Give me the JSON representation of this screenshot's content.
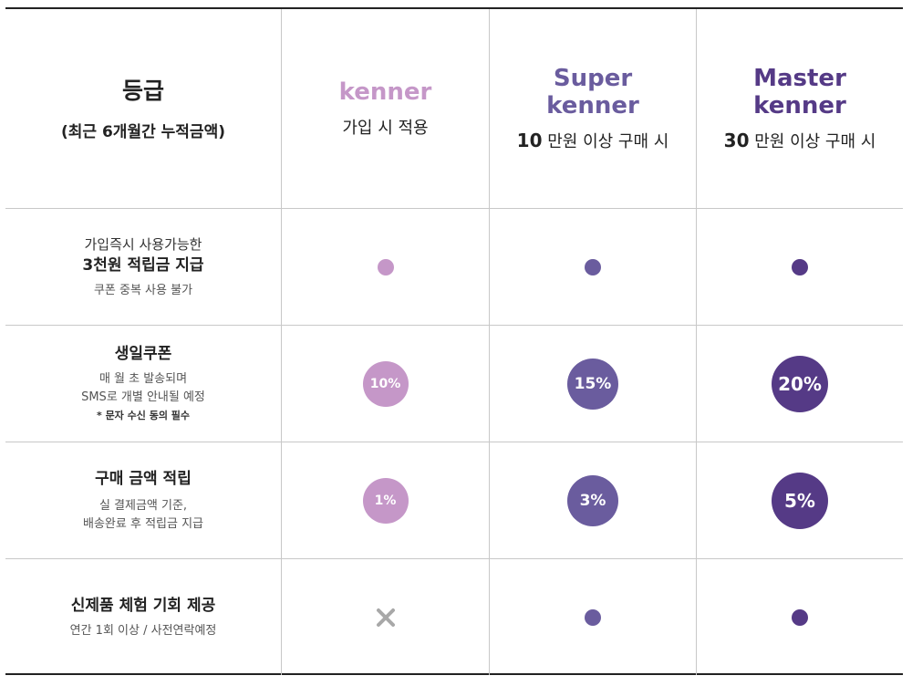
{
  "colors": {
    "kenner": "#c597c8",
    "super": "#6a5c9e",
    "master": "#553a86",
    "cross": "#a8a8a8"
  },
  "header": {
    "grade_label": "등급",
    "grade_sub": "(최근 6개월간 누적금액)",
    "tiers": [
      {
        "name_line1": "kenner",
        "name_line2": "",
        "condition_amount": "",
        "condition_text": "가입 시 적용"
      },
      {
        "name_line1": "Super",
        "name_line2": "kenner",
        "condition_amount": "10",
        "condition_text": "만원 이상 구매 시"
      },
      {
        "name_line1": "Master",
        "name_line2": "kenner",
        "condition_amount": "30",
        "condition_text": "만원 이상 구매 시"
      }
    ]
  },
  "benefits": [
    {
      "line1": "가입즉시 사용가능한",
      "title": "3천원 적립금 지급",
      "note": "쿠폰 중복 사용 불가",
      "values": [
        "",
        "",
        ""
      ]
    },
    {
      "title": "생일쿠폰",
      "desc1": "매 월 초 발송되며",
      "desc2": "SMS로 개별 안내될 예정",
      "note": "* 문자 수신 동의 필수",
      "values": [
        "10%",
        "15%",
        "20%"
      ]
    },
    {
      "title": "구매 금액 적립",
      "desc1": "실 결제금액 기준,",
      "desc2": "배송완료 후 적립금 지급",
      "values": [
        "1%",
        "3%",
        "5%"
      ]
    },
    {
      "title": "신제품 체험 기회 제공",
      "desc1": "연간 1회 이상 / 사전연락예정",
      "values": [
        "",
        "",
        ""
      ],
      "icons": [
        "cross-icon",
        "dot-icon",
        "dot-icon"
      ]
    }
  ]
}
